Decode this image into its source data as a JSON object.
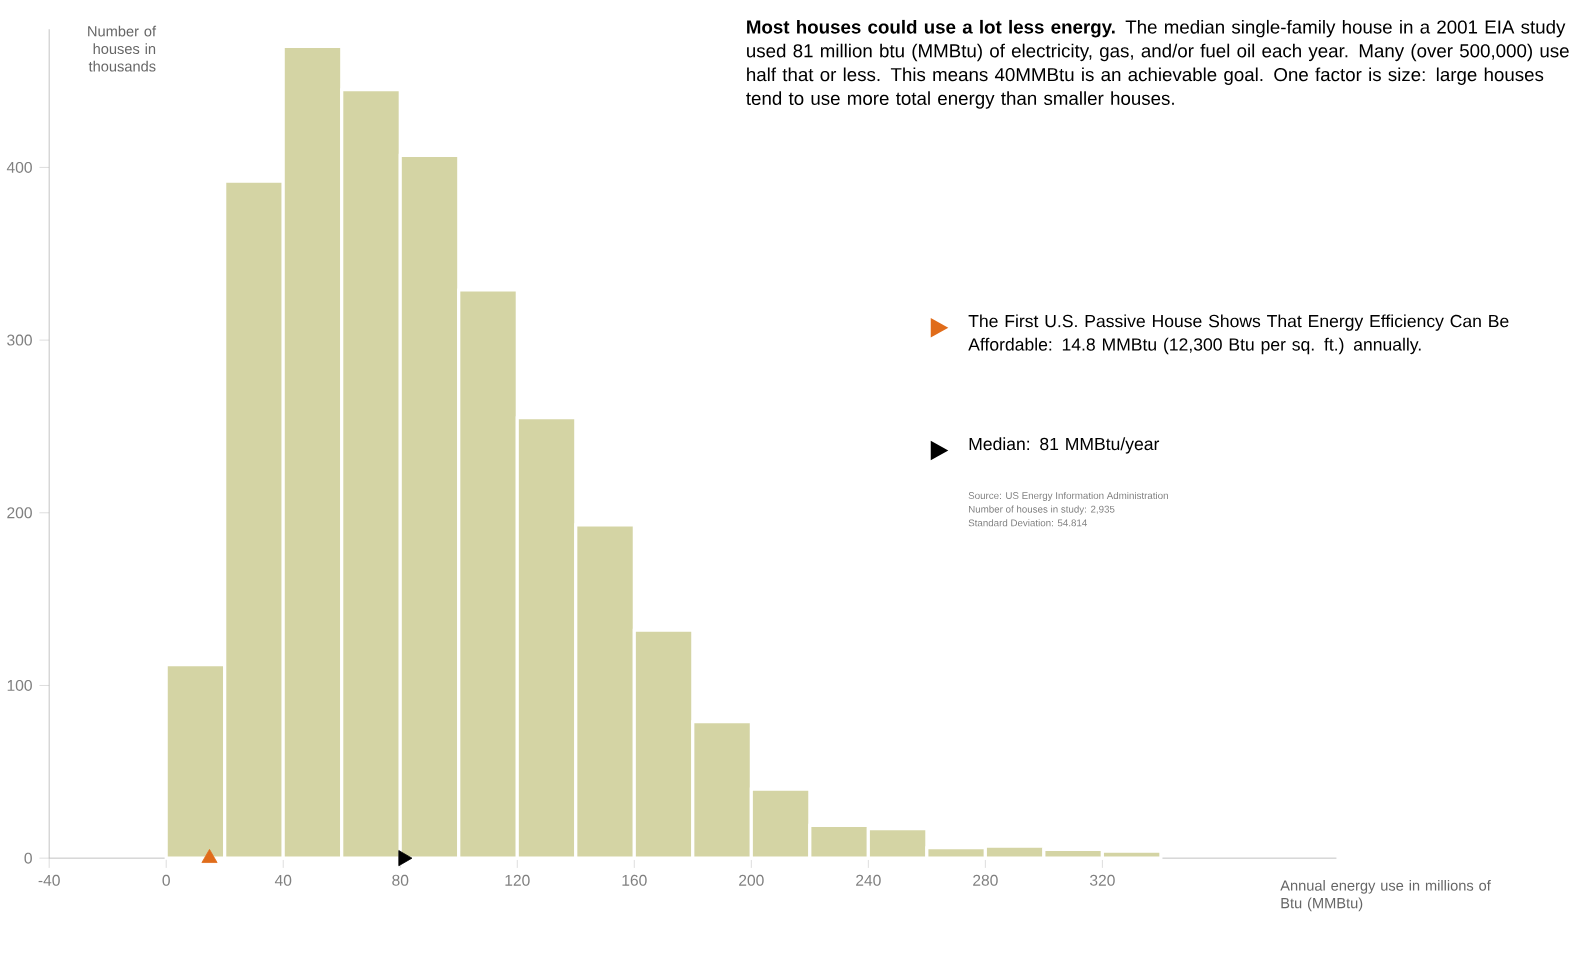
{
  "chart_data": {
    "type": "histogram",
    "title": "Most houses could use a lot less energy.",
    "subtitle": "The median single-family house in a 2001 EIA study used 81 million btu (MMBtu) of electricity, gas, and/or fuel oil each year. Many (over 500,000) use half that or less. This means 40MMBtu is an achievable goal. One factor is size: large houses tend to use more total energy than smaller houses.",
    "xlabel": "Annual energy use in millions of Btu (MMBtu)",
    "ylabel": "Number of houses in thousands",
    "bins": [
      0,
      20,
      40,
      60,
      80,
      100,
      120,
      140,
      160,
      180,
      200,
      220,
      240,
      260,
      280,
      300,
      320,
      340
    ],
    "values": [
      112,
      392,
      470,
      445,
      407,
      329,
      255,
      193,
      132,
      79,
      40,
      19,
      17,
      6,
      7,
      5,
      4
    ],
    "color": "#d4d4a4",
    "series": [
      {
        "type": "scatter",
        "name": "The First U.S. Passive House Shows That Energy Efficiency Can Be Affordable: 14.8 MMBtu (12,300 Btu per sq. ft.) annually.",
        "color": "#e06c1a",
        "marker": "triangle",
        "x": [
          14.8
        ],
        "values": [
          0
        ]
      },
      {
        "type": "scatter",
        "name": "Median: 81 MMBtu/year",
        "color": "#000000",
        "marker": "triangle",
        "x": [
          81
        ],
        "values": [
          0
        ]
      }
    ],
    "legend": "right",
    "xlim": [
      -40,
      400
    ],
    "ylim": [
      0,
      480
    ],
    "xticks": [
      -40,
      0,
      40,
      80,
      120,
      160,
      200,
      240,
      280,
      320
    ],
    "yticks": [
      0,
      100,
      200,
      300,
      400
    ],
    "annotations": [
      "Source: US Energy Information Administration",
      "Number of houses in study: 2,935",
      "Standard Deviation: 54.814"
    ]
  }
}
